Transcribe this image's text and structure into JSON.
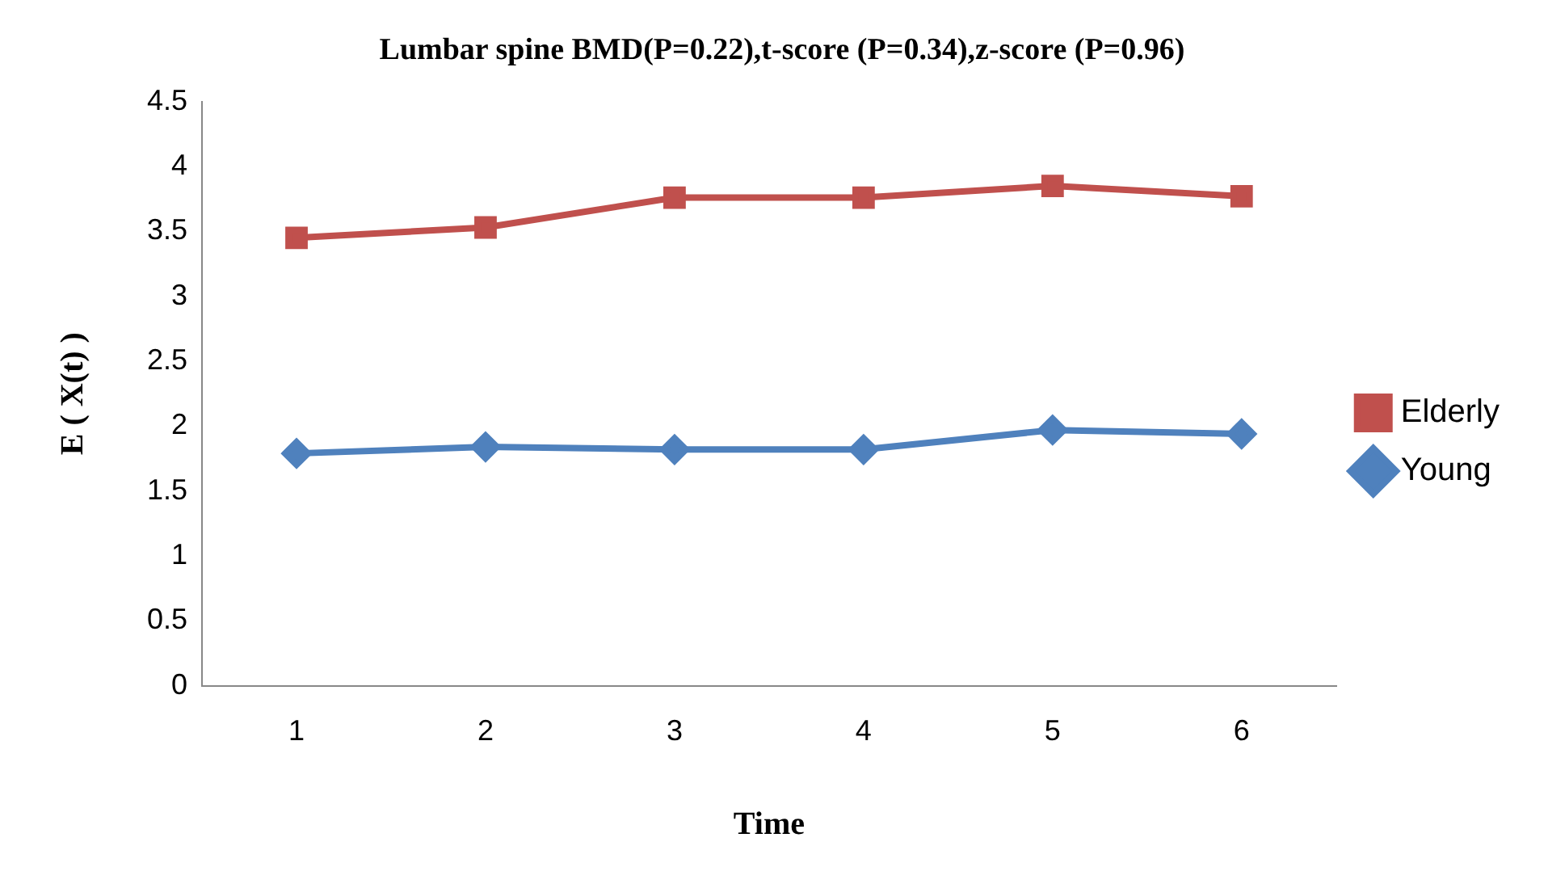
{
  "chart_data": {
    "type": "line",
    "title": "Lumbar spine BMD(P=0.22),t-score (P=0.34),z-score (P=0.96)",
    "xlabel": "Time",
    "ylabel": "E ( X(t) )",
    "categories": [
      "1",
      "2",
      "3",
      "4",
      "5",
      "6"
    ],
    "series": [
      {
        "name": "Elderly",
        "color": "#c0504d",
        "marker": "square",
        "values": [
          3.45,
          3.53,
          3.76,
          3.76,
          3.85,
          3.77
        ]
      },
      {
        "name": "Young",
        "color": "#4f81bd",
        "marker": "diamond",
        "values": [
          1.79,
          1.84,
          1.82,
          1.82,
          1.97,
          1.94
        ]
      }
    ],
    "ylim": [
      0,
      4.5
    ],
    "yticks": [
      0,
      0.5,
      1,
      1.5,
      2,
      2.5,
      3,
      3.5,
      4,
      4.5
    ],
    "grid": false,
    "legend": "right",
    "line_style": "solid"
  }
}
